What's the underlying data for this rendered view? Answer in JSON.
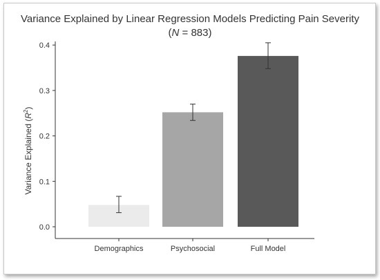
{
  "chart_data": {
    "type": "bar",
    "title": "Variance Explained by Linear Regression Models Predicting Pain Severity",
    "subtitle_prefix": "N",
    "subtitle_value": " = 883)",
    "ylabel_main": "Variance Explained (",
    "ylabel_symbol": "R",
    "ylabel_sup": "2",
    "ylabel_end": ")",
    "xlabel": "",
    "categories": [
      "Demographics",
      "Psychosocial",
      "Full Model"
    ],
    "values": [
      0.048,
      0.252,
      0.376
    ],
    "error_low": [
      0.031,
      0.234,
      0.348
    ],
    "error_high": [
      0.067,
      0.27,
      0.405
    ],
    "colors": [
      "#ebebeb",
      "#a6a6a6",
      "#595959"
    ],
    "ylim": [
      0,
      0.42
    ],
    "yticks": [
      0.0,
      0.1,
      0.2,
      0.3,
      0.4
    ],
    "ytick_labels": [
      "0.0",
      "0.1",
      "0.2",
      "0.3",
      "0.4"
    ],
    "grid": false,
    "legend": "none"
  }
}
